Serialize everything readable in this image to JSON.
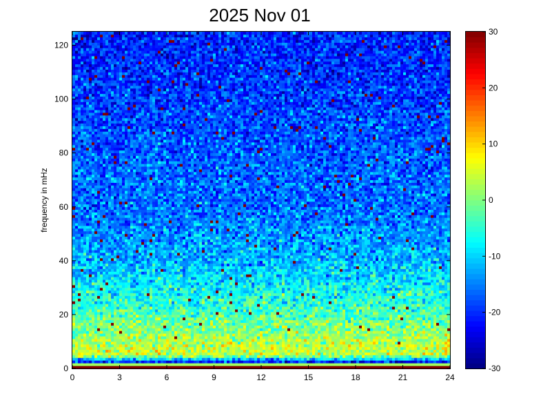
{
  "chart_data": {
    "type": "heatmap",
    "title": "2025 Nov 01",
    "xlabel": "",
    "ylabel": "frequency in mHz",
    "xlim": [
      0,
      24
    ],
    "ylim": [
      0,
      125
    ],
    "x_ticks": [
      0,
      3,
      6,
      9,
      12,
      15,
      18,
      21,
      24
    ],
    "y_ticks": [
      0,
      20,
      40,
      60,
      80,
      100,
      120
    ],
    "colormap": "jet",
    "clim": [
      -30,
      30
    ],
    "colorbar_ticks": [
      -30,
      -20,
      -10,
      0,
      10,
      20,
      30
    ],
    "grid": false,
    "values_profile": {
      "frequency_mHz": [
        0,
        1,
        2,
        5,
        10,
        20,
        40,
        60,
        80,
        100,
        125
      ],
      "typical_value": [
        30,
        30,
        -26,
        5,
        3,
        -3,
        -12,
        -16,
        -17,
        -19,
        -21
      ],
      "spread": 4,
      "occasional_high_value": 30
    }
  }
}
